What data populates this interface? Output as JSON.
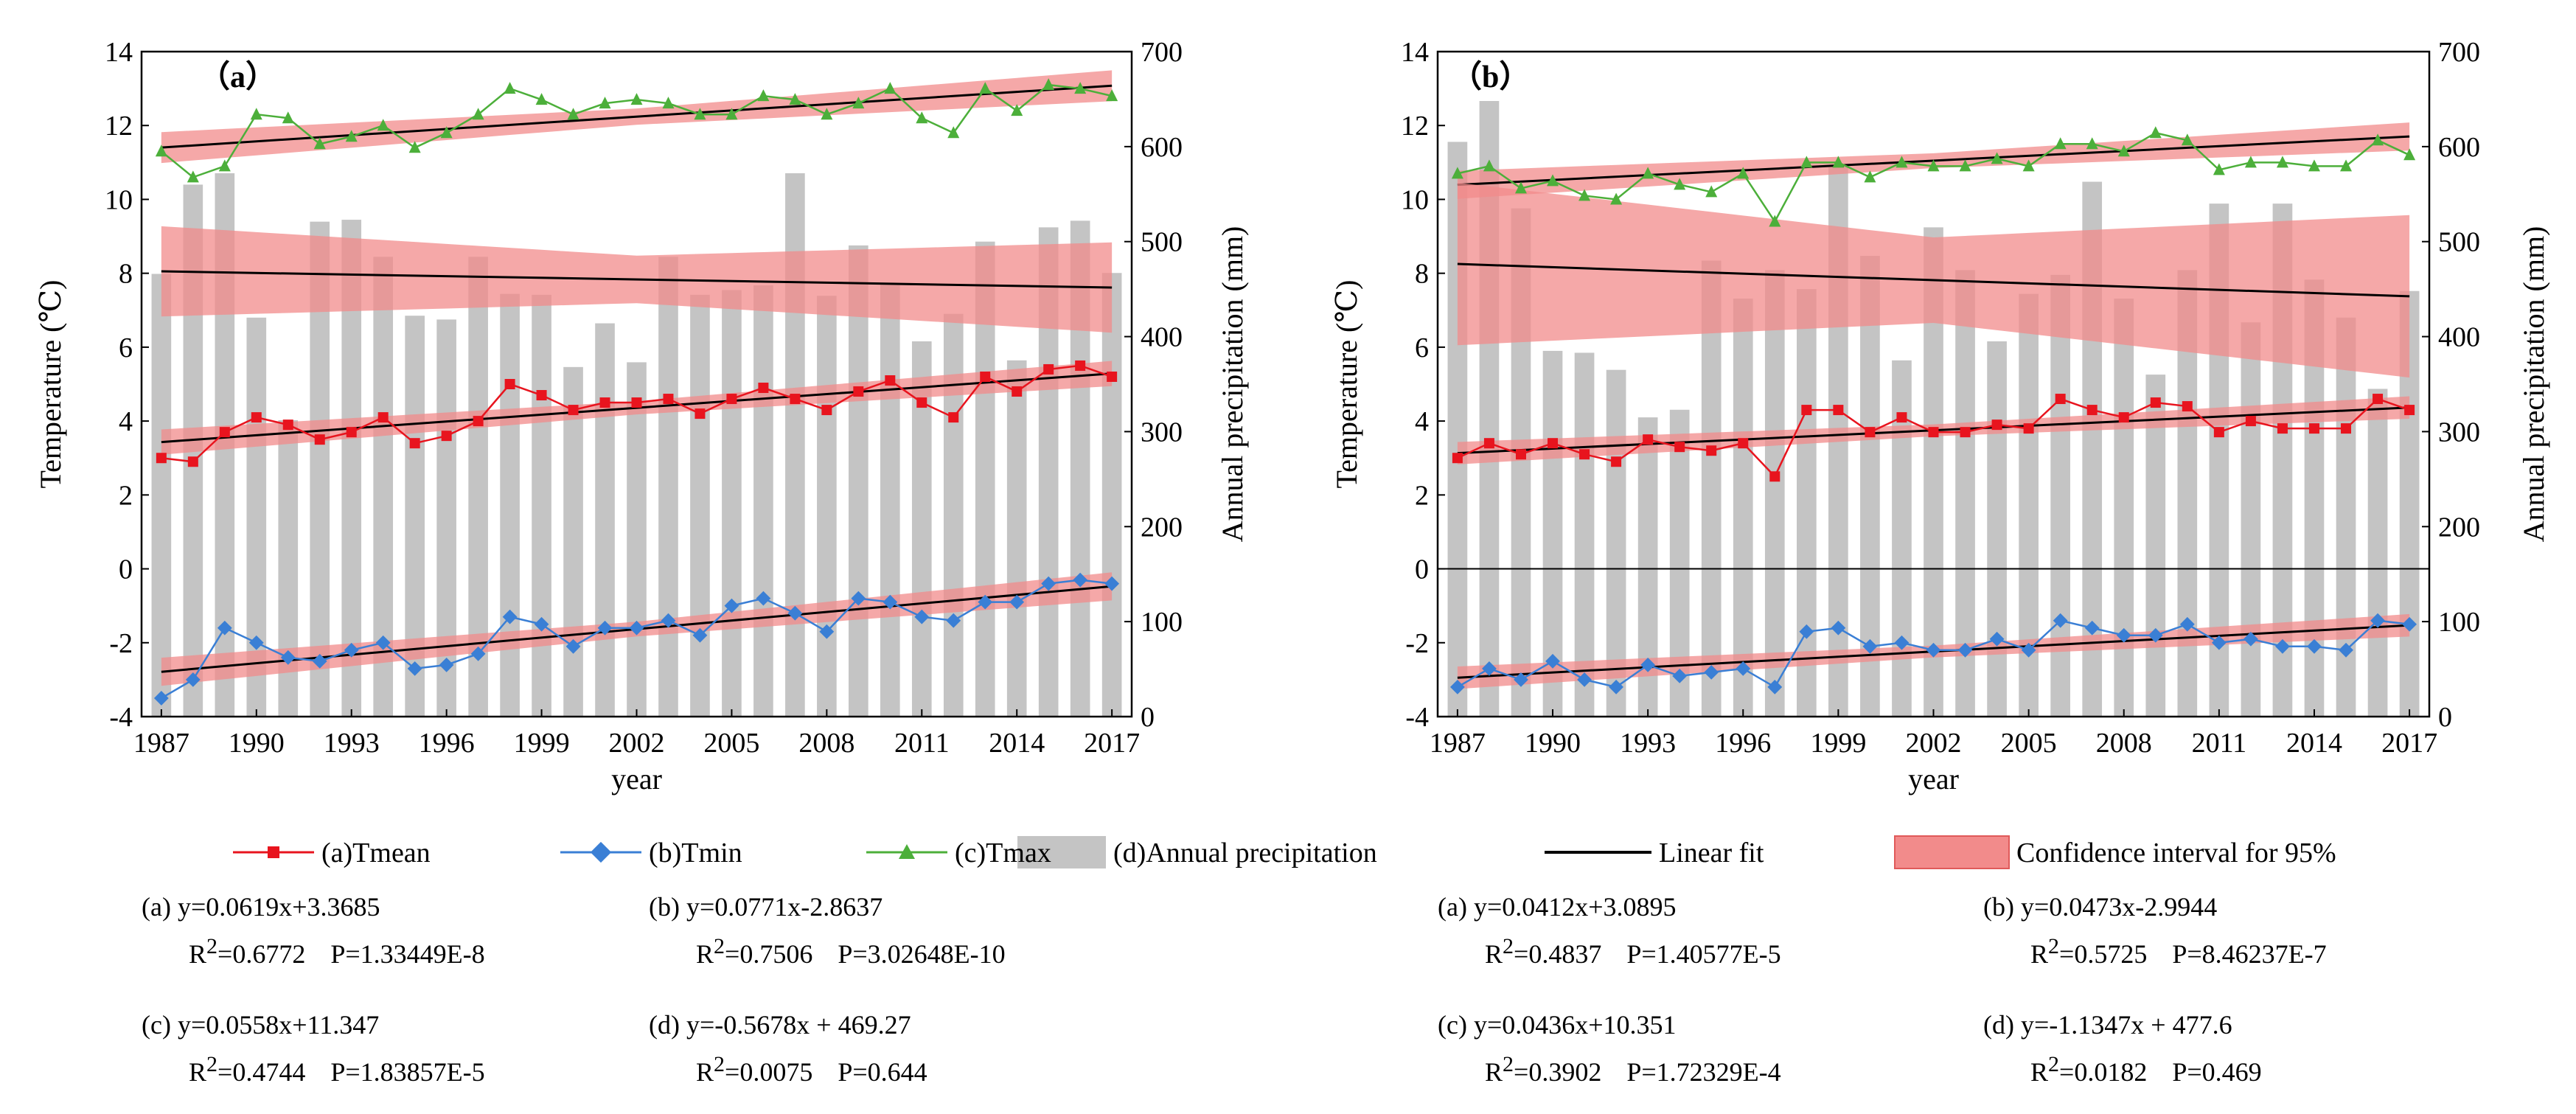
{
  "chart_data": [
    {
      "panel_label": "（a）",
      "type": "bar+line",
      "x": [
        1987,
        1988,
        1989,
        1990,
        1991,
        1992,
        1993,
        1994,
        1995,
        1996,
        1997,
        1998,
        1999,
        2000,
        2001,
        2002,
        2003,
        2004,
        2005,
        2006,
        2007,
        2008,
        2009,
        2010,
        2011,
        2012,
        2013,
        2014,
        2015,
        2016,
        2017
      ],
      "xticks": [
        "1987",
        "1990",
        "1993",
        "1996",
        "1999",
        "2002",
        "2005",
        "2008",
        "2011",
        "2014",
        "2017"
      ],
      "xlabel": "year",
      "ylabel_left": "Temperature (℃)",
      "ylabel_right": "Annual precipitation (mm)",
      "ylim_left": [
        -4,
        14
      ],
      "ylim_right": [
        0,
        700
      ],
      "yticks_left": [
        "-4",
        "-2",
        "0",
        "2",
        "4",
        "6",
        "8",
        "10",
        "12",
        "14"
      ],
      "yticks_right": [
        "0",
        "100",
        "200",
        "300",
        "400",
        "500",
        "600",
        "700"
      ],
      "series": [
        {
          "name": "(a)Tmean",
          "values": [
            3.0,
            2.9,
            3.7,
            4.1,
            3.9,
            3.5,
            3.7,
            4.1,
            3.4,
            3.6,
            4.0,
            5.0,
            4.7,
            4.3,
            4.5,
            4.5,
            4.6,
            4.2,
            4.6,
            4.9,
            4.6,
            4.3,
            4.8,
            5.1,
            4.5,
            4.1,
            5.2,
            4.8,
            5.4,
            5.5,
            5.2
          ]
        },
        {
          "name": "(b)Tmin",
          "values": [
            -3.5,
            -3.0,
            -1.6,
            -2.0,
            -2.4,
            -2.5,
            -2.2,
            -2.0,
            -2.7,
            -2.6,
            -2.3,
            -1.3,
            -1.5,
            -2.1,
            -1.6,
            -1.6,
            -1.4,
            -1.8,
            -1.0,
            -0.8,
            -1.2,
            -1.7,
            -0.8,
            -0.9,
            -1.3,
            -1.4,
            -0.9,
            -0.9,
            -0.4,
            -0.3,
            -0.4
          ]
        },
        {
          "name": "(c)Tmax",
          "values": [
            11.3,
            10.6,
            10.9,
            12.3,
            12.2,
            11.5,
            11.7,
            12.0,
            11.4,
            11.8,
            12.3,
            13.0,
            12.7,
            12.3,
            12.6,
            12.7,
            12.6,
            12.3,
            12.3,
            12.8,
            12.7,
            12.3,
            12.6,
            13.0,
            12.2,
            11.8,
            13.0,
            12.4,
            13.1,
            13.0,
            12.8
          ]
        },
        {
          "name": "(d)Annual precipitation",
          "axis": "right",
          "values": [
            466,
            560,
            572,
            420,
            312,
            521,
            523,
            484,
            422,
            418,
            484,
            445,
            444,
            368,
            414,
            373,
            484,
            444,
            449,
            454,
            572,
            443,
            496,
            456,
            395,
            424,
            500,
            375,
            515,
            522,
            467
          ]
        }
      ],
      "fits": [
        {
          "series": "(c)Tmax",
          "axis": "left",
          "slope": 0.0558,
          "intercept": 11.347,
          "ci": 0.22
        },
        {
          "series": "(d)Annual precipitation",
          "axis": "right",
          "slope": -0.5678,
          "intercept": 469.27,
          "ci": 25
        },
        {
          "series": "(a)Tmean",
          "axis": "left",
          "slope": 0.0619,
          "intercept": 3.3685,
          "ci": 0.18
        },
        {
          "series": "(b)Tmin",
          "axis": "left",
          "slope": 0.0771,
          "intercept": -2.8637,
          "ci": 0.2
        }
      ]
    },
    {
      "panel_label": "（b）",
      "type": "bar+line",
      "x": [
        1987,
        1988,
        1989,
        1990,
        1991,
        1992,
        1993,
        1994,
        1995,
        1996,
        1997,
        1998,
        1999,
        2000,
        2001,
        2002,
        2003,
        2004,
        2005,
        2006,
        2007,
        2008,
        2009,
        2010,
        2011,
        2012,
        2013,
        2014,
        2015,
        2016,
        2017
      ],
      "xticks": [
        "1987",
        "1990",
        "1993",
        "1996",
        "1999",
        "2002",
        "2005",
        "2008",
        "2011",
        "2014",
        "2017"
      ],
      "xlabel": "year",
      "ylabel_left": "Temperature (℃)",
      "ylabel_right": "Annual precipitation (mm)",
      "ylim_left": [
        -4,
        14
      ],
      "ylim_right": [
        0,
        700
      ],
      "yticks_left": [
        "-4",
        "-2",
        "0",
        "2",
        "4",
        "6",
        "8",
        "10",
        "12",
        "14"
      ],
      "yticks_right": [
        "200",
        "300",
        "400",
        "500",
        "600",
        "700",
        "0",
        "100"
      ],
      "yticks_right_values": [
        200,
        300,
        400,
        500,
        600,
        700,
        0,
        100
      ],
      "zero_line": true,
      "series": [
        {
          "name": "(a)Tmean",
          "values": [
            3.0,
            3.4,
            3.1,
            3.4,
            3.1,
            2.9,
            3.5,
            3.3,
            3.2,
            3.4,
            2.5,
            4.3,
            4.3,
            3.7,
            4.1,
            3.7,
            3.7,
            3.9,
            3.8,
            4.6,
            4.3,
            4.1,
            4.5,
            4.4,
            3.7,
            4.0,
            3.8,
            3.8,
            3.8,
            4.6,
            4.3
          ]
        },
        {
          "name": "(b)Tmin",
          "values": [
            -3.2,
            -2.7,
            -3.0,
            -2.5,
            -3.0,
            -3.2,
            -2.6,
            -2.9,
            -2.8,
            -2.7,
            -3.2,
            -1.7,
            -1.6,
            -2.1,
            -2.0,
            -2.2,
            -2.2,
            -1.9,
            -2.2,
            -1.4,
            -1.6,
            -1.8,
            -1.8,
            -1.5,
            -2.0,
            -1.9,
            -2.1,
            -2.1,
            -2.2,
            -1.4,
            -1.5
          ]
        },
        {
          "name": "(c)Tmax",
          "values": [
            10.7,
            10.9,
            10.3,
            10.5,
            10.1,
            10.0,
            10.7,
            10.4,
            10.2,
            10.7,
            9.4,
            11.0,
            11.0,
            10.6,
            11.0,
            10.9,
            10.9,
            11.1,
            10.9,
            11.5,
            11.5,
            11.3,
            11.8,
            11.6,
            10.8,
            11.0,
            11.0,
            10.9,
            10.9,
            11.6,
            11.2
          ]
        },
        {
          "name": "(d)Annual precipitation",
          "axis": "right",
          "values": [
            605,
            648,
            535,
            385,
            383,
            365,
            315,
            323,
            480,
            440,
            470,
            450,
            580,
            485,
            375,
            515,
            470,
            395,
            445,
            465,
            563,
            440,
            360,
            470,
            540,
            415,
            540,
            460,
            420,
            345,
            448
          ]
        }
      ],
      "fits": [
        {
          "series": "(c)Tmax",
          "axis": "left",
          "slope": 0.0436,
          "intercept": 10.351,
          "ci": 0.2
        },
        {
          "series": "(d)Annual precipitation",
          "axis": "right",
          "slope": -1.1347,
          "intercept": 477.6,
          "ci": 45
        },
        {
          "series": "(a)Tmean",
          "axis": "left",
          "slope": 0.0412,
          "intercept": 3.0895,
          "ci": 0.16
        },
        {
          "series": "(b)Tmin",
          "axis": "left",
          "slope": 0.0473,
          "intercept": -2.9944,
          "ci": 0.16
        }
      ]
    }
  ],
  "legend": {
    "tmean": "(a)Tmean",
    "tmin": "(b)Tmin",
    "tmax": "(c)Tmax",
    "precip": "(d)Annual precipitation",
    "fit": "Linear fit",
    "ci": "Confidence interval for 95%"
  },
  "equations": {
    "left": {
      "a": {
        "eq": "(a) y=0.0619x+3.3685",
        "r2": "0.6772",
        "p": "P=1.33449E-8"
      },
      "b": {
        "eq": "(b) y=0.0771x-2.8637",
        "r2": "0.7506",
        "p": "P=3.02648E-10"
      },
      "c": {
        "eq": "(c) y=0.0558x+11.347",
        "r2": "0.4744",
        "p": "P=1.83857E-5"
      },
      "d": {
        "eq": "(d) y=-0.5678x + 469.27",
        "r2": "0.0075",
        "p": "P=0.644"
      }
    },
    "right": {
      "a": {
        "eq": "(a) y=0.0412x+3.0895",
        "r2": "0.4837",
        "p": "P=1.40577E-5"
      },
      "b": {
        "eq": "(b) y=0.0473x-2.9944",
        "r2": "0.5725",
        "p": "P=8.46237E-7"
      },
      "c": {
        "eq": "(c) y=0.0436x+10.351",
        "r2": "0.3902",
        "p": "P=1.72329E-4"
      },
      "d": {
        "eq": "(d) y=-1.1347x + 477.6",
        "r2": "0.0182",
        "p": "P=0.469"
      }
    }
  },
  "colors": {
    "tmean": "#e8141e",
    "tmin": "#3a7fd5",
    "tmax": "#4caf3a",
    "bar": "#c4c4c4",
    "fit": "#000000",
    "ci": "#f28b8b"
  }
}
